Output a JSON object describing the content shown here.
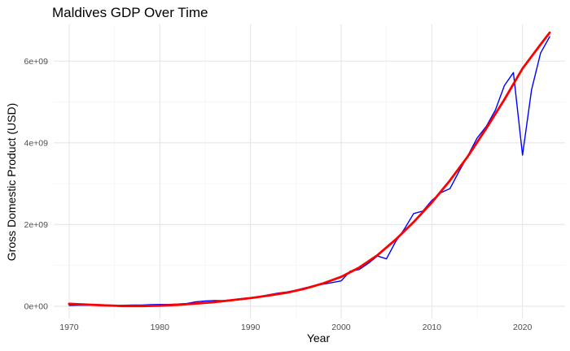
{
  "chart_data": {
    "type": "line",
    "title": "Maldives GDP Over Time",
    "xlabel": "Year",
    "ylabel": "Gross Domestic Product (USD)",
    "xlim": [
      1968.3,
      2024.7
    ],
    "ylim": [
      -300000000,
      6900000000
    ],
    "x_ticks": [
      1970,
      1980,
      1990,
      2000,
      2010,
      2020
    ],
    "x_tick_labels": [
      "1970",
      "1980",
      "1990",
      "2000",
      "2010",
      "2020"
    ],
    "y_ticks": [
      0,
      2000000000,
      4000000000,
      6000000000
    ],
    "y_tick_labels": [
      "0e+00",
      "2e+09",
      "4e+09",
      "6e+09"
    ],
    "grid": true,
    "series": [
      {
        "role": "observed",
        "color": "#0000ff",
        "x": [
          1970,
          1971,
          1972,
          1973,
          1974,
          1975,
          1976,
          1977,
          1978,
          1979,
          1980,
          1981,
          1982,
          1983,
          1984,
          1985,
          1986,
          1987,
          1988,
          1989,
          1990,
          1991,
          1992,
          1993,
          1994,
          1995,
          1996,
          1997,
          1998,
          1999,
          2000,
          2001,
          2002,
          2003,
          2004,
          2005,
          2006,
          2007,
          2008,
          2009,
          2010,
          2011,
          2012,
          2013,
          2014,
          2015,
          2016,
          2017,
          2018,
          2019,
          2020,
          2021,
          2022,
          2023
        ],
        "y": [
          20000000,
          25000000,
          25000000,
          30000000,
          30000000,
          25000000,
          25000000,
          30000000,
          30000000,
          40000000,
          45000000,
          45000000,
          55000000,
          70000000,
          110000000,
          130000000,
          140000000,
          140000000,
          160000000,
          190000000,
          210000000,
          240000000,
          280000000,
          320000000,
          350000000,
          390000000,
          450000000,
          500000000,
          540000000,
          580000000,
          620000000,
          860000000,
          900000000,
          1050000000,
          1230000000,
          1160000000,
          1580000000,
          1900000000,
          2270000000,
          2330000000,
          2590000000,
          2780000000,
          2880000000,
          3300000000,
          3700000000,
          4120000000,
          4400000000,
          4800000000,
          5400000000,
          5720000000,
          3700000000,
          5300000000,
          6200000000,
          6600000000
        ]
      },
      {
        "role": "smoothed fit",
        "color": "#ff0000",
        "x": [
          1970,
          1972,
          1974,
          1976,
          1978,
          1980,
          1982,
          1984,
          1986,
          1988,
          1990,
          1992,
          1994,
          1996,
          1998,
          2000,
          2002,
          2004,
          2006,
          2008,
          2010,
          2012,
          2014,
          2016,
          2018,
          2020,
          2022,
          2023
        ],
        "y": [
          60000000,
          40000000,
          20000000,
          5000000,
          5000000,
          15000000,
          35000000,
          65000000,
          100000000,
          150000000,
          200000000,
          260000000,
          330000000,
          430000000,
          560000000,
          720000000,
          950000000,
          1250000000,
          1630000000,
          2060000000,
          2540000000,
          3080000000,
          3680000000,
          4350000000,
          5060000000,
          5820000000,
          6410000000,
          6700000000
        ]
      }
    ]
  }
}
